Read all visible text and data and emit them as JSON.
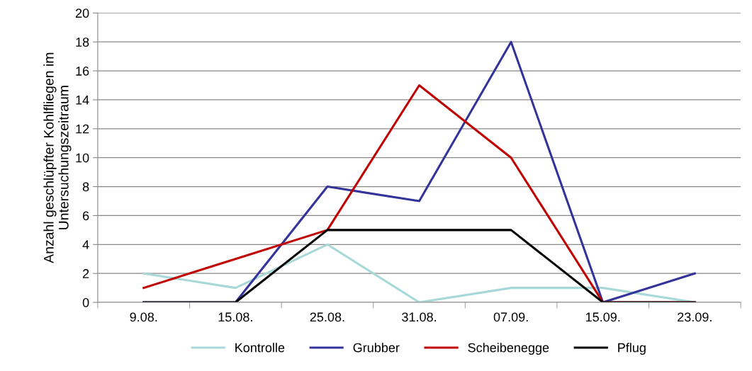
{
  "chart_data": {
    "type": "line",
    "ylabel": "Anzahl geschlüpfter Kohlfliegen im\nUntersuchungszeitraum",
    "categories": [
      "9.08.",
      "15.08.",
      "25.08.",
      "31.08.",
      "07.09.",
      "15.09.",
      "23.09."
    ],
    "series": [
      {
        "name": "Kontrolle",
        "color": "#a8d8d8",
        "values": [
          2,
          1,
          4,
          0,
          1,
          1,
          0
        ]
      },
      {
        "name": "Grubber",
        "color": "#333399",
        "values": [
          0,
          0,
          8,
          7,
          18,
          0,
          2
        ]
      },
      {
        "name": "Scheibenegge",
        "color": "#c00000",
        "values": [
          1,
          3,
          5,
          15,
          10,
          0,
          0
        ]
      },
      {
        "name": "Pflug",
        "color": "#000000",
        "values": [
          0,
          0,
          5,
          5,
          5,
          0,
          0
        ]
      }
    ],
    "ylim": [
      0,
      20
    ],
    "yticks": [
      0,
      2,
      4,
      6,
      8,
      10,
      12,
      14,
      16,
      18,
      20
    ],
    "grid": "y",
    "legend": "bottom",
    "marker": "none",
    "line_style": "solid"
  }
}
